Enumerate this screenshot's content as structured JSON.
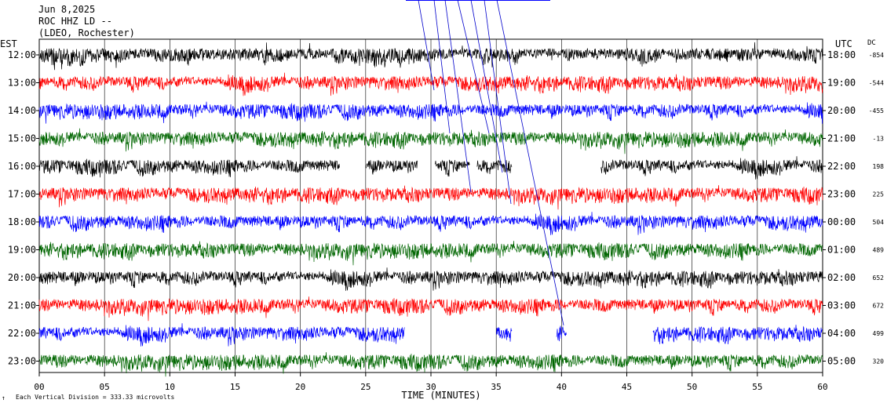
{
  "header": {
    "line1": "Jun 8,2025",
    "line2": "ROC HHZ LD --",
    "line3": "(LDEO, Rochester)"
  },
  "left_axis_label": "EST",
  "right_axis_label": "UTC",
  "dc_label": "DC",
  "footer_note": "Each Vertical Division =  333.33 microvolts",
  "footer_glyph": "↑",
  "chart_data": {
    "type": "line",
    "title": "",
    "xlabel": "TIME (MINUTES)",
    "ylabel": "",
    "xlim": [
      0,
      60
    ],
    "x_ticks": [
      "00",
      "05",
      "10",
      "15",
      "20",
      "25",
      "30",
      "35",
      "40",
      "45",
      "50",
      "55",
      "60"
    ],
    "grid": true,
    "series_colors": [
      "#000000",
      "#ff0000",
      "#0000ff",
      "#006600"
    ],
    "rows": [
      {
        "est": "12:00",
        "utc": "18:00",
        "dc": "-854",
        "color": "#000000",
        "gaps": []
      },
      {
        "est": "13:00",
        "utc": "19:00",
        "dc": "-544",
        "color": "#ff0000",
        "gaps": []
      },
      {
        "est": "14:00",
        "utc": "20:00",
        "dc": "-455",
        "color": "#0000ff",
        "gaps": []
      },
      {
        "est": "15:00",
        "utc": "21:00",
        "dc": "-13",
        "color": "#006600",
        "gaps": []
      },
      {
        "est": "16:00",
        "utc": "22:00",
        "dc": "198",
        "color": "#000000",
        "gaps": [
          [
            23,
            25
          ],
          [
            29,
            30.3
          ],
          [
            33,
            33.5
          ],
          [
            36.2,
            43
          ]
        ]
      },
      {
        "est": "17:00",
        "utc": "23:00",
        "dc": "225",
        "color": "#ff0000",
        "gaps": []
      },
      {
        "est": "18:00",
        "utc": "00:00",
        "dc": "504",
        "color": "#0000ff",
        "gaps": []
      },
      {
        "est": "19:00",
        "utc": "01:00",
        "dc": "489",
        "color": "#006600",
        "gaps": []
      },
      {
        "est": "20:00",
        "utc": "02:00",
        "dc": "652",
        "color": "#000000",
        "gaps": []
      },
      {
        "est": "21:00",
        "utc": "03:00",
        "dc": "672",
        "color": "#ff0000",
        "gaps": []
      },
      {
        "est": "22:00",
        "utc": "04:00",
        "dc": "499",
        "color": "#0000ff",
        "gaps": [
          [
            28,
            35
          ],
          [
            36.2,
            39.6
          ],
          [
            40.4,
            47
          ]
        ]
      },
      {
        "est": "23:00",
        "utc": "05:00",
        "dc": "320",
        "color": "#006600",
        "gaps": []
      }
    ]
  }
}
